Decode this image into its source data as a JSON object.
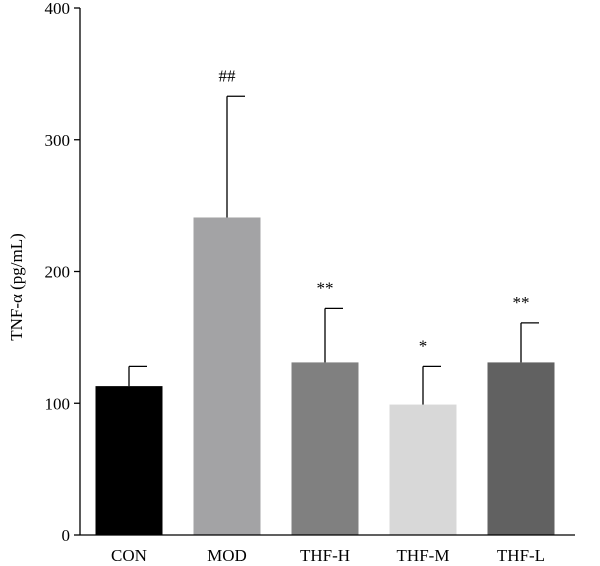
{
  "chart_data": {
    "type": "bar",
    "categories": [
      "CON",
      "MOD",
      "THF-H",
      "THF-M",
      "THF-L"
    ],
    "values": [
      113,
      241,
      131,
      99,
      131
    ],
    "errors": [
      15,
      92,
      41,
      29,
      30
    ],
    "annotations": [
      "",
      "##",
      "**",
      "*",
      "**"
    ],
    "colors": [
      "#000000",
      "#a3a3a5",
      "#808080",
      "#d8d8d8",
      "#616161"
    ],
    "ylabel": "TNF-α (pg/mL)",
    "ylim": [
      0,
      400
    ],
    "yticks": [
      "0",
      "100",
      "200",
      "300",
      "400"
    ],
    "grid": false,
    "legend": "none"
  }
}
